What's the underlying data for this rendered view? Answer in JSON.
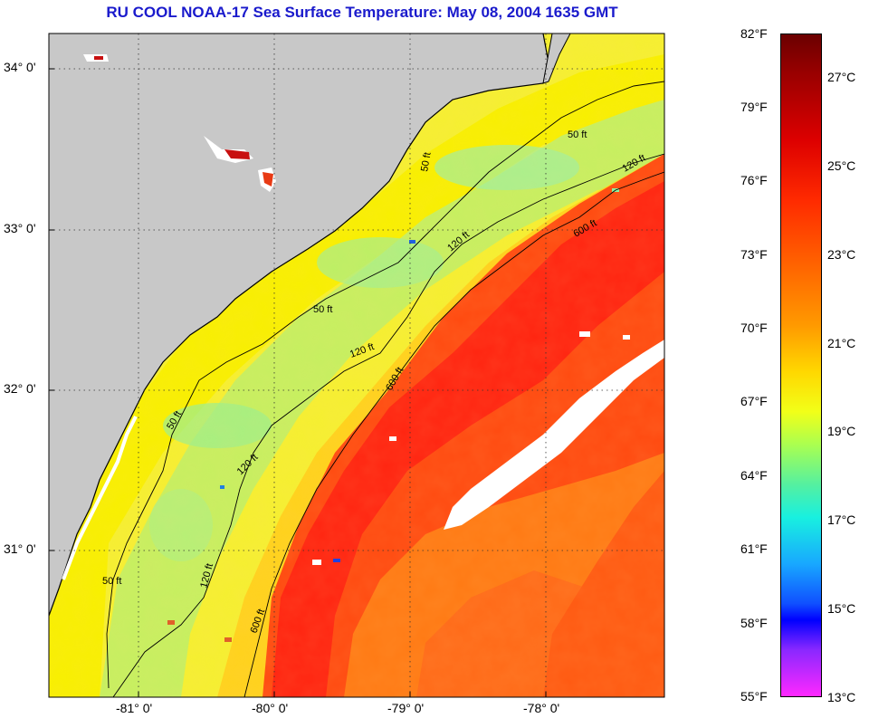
{
  "title": "RU COOL  NOAA-17  Sea Surface Temperature:  May 08, 2004 1635 GMT",
  "map": {
    "lat_labels": [
      "34° 0'",
      "33° 0'",
      "32° 0'",
      "31° 0'"
    ],
    "lon_labels": [
      "-81° 0'",
      "-80° 0'",
      "-79° 0'",
      "-78° 0'"
    ],
    "contour_labels": [
      "50 ft",
      "50 ft",
      "50 ft",
      "50 ft",
      "120 ft",
      "120 ft",
      "120 ft",
      "120 ft",
      "120 ft",
      "600 ft",
      "600 ft",
      "600 ft",
      "50 ft"
    ],
    "colors": {
      "land": "#c8c8c8",
      "gulf_stream": "#ff3a0c",
      "shelf": "#c8f060",
      "cloud": "#ffffff"
    }
  },
  "colorbar": {
    "fahrenheit_labels": [
      "82°F",
      "79°F",
      "76°F",
      "73°F",
      "70°F",
      "67°F",
      "64°F",
      "61°F",
      "58°F",
      "55°F"
    ],
    "celsius_labels": [
      "27°C",
      "25°C",
      "23°C",
      "21°C",
      "19°C",
      "17°C",
      "15°C",
      "13°C"
    ]
  }
}
